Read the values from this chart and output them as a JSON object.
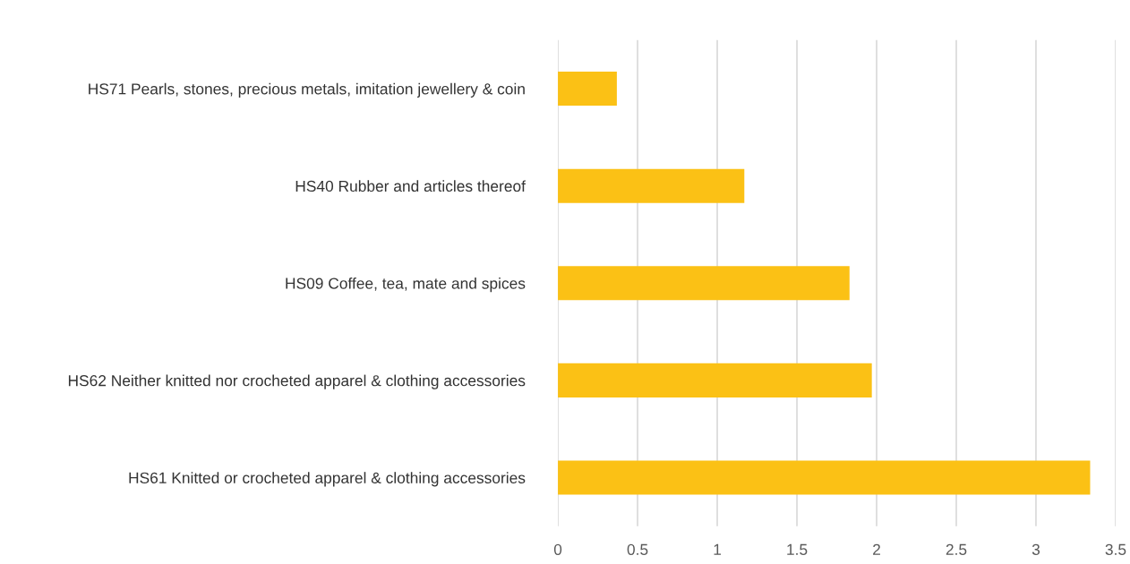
{
  "chart_data": {
    "type": "bar",
    "orientation": "horizontal",
    "categories": [
      "HS71 Pearls, stones, precious metals, imitation jewellery & coin",
      "HS40 Rubber and articles thereof",
      "HS09 Coffee, tea, mate and spices",
      "HS62 Neither knitted nor crocheted apparel & clothing accessories",
      "HS61 Knitted or crocheted apparel & clothing accessories"
    ],
    "values": [
      0.37,
      1.17,
      1.83,
      1.97,
      3.34
    ],
    "color": "#fbc115",
    "xlim": [
      0,
      3.5
    ],
    "xticks": [
      0,
      0.5,
      1,
      1.5,
      2,
      2.5,
      3,
      3.5
    ],
    "grid": "x"
  }
}
